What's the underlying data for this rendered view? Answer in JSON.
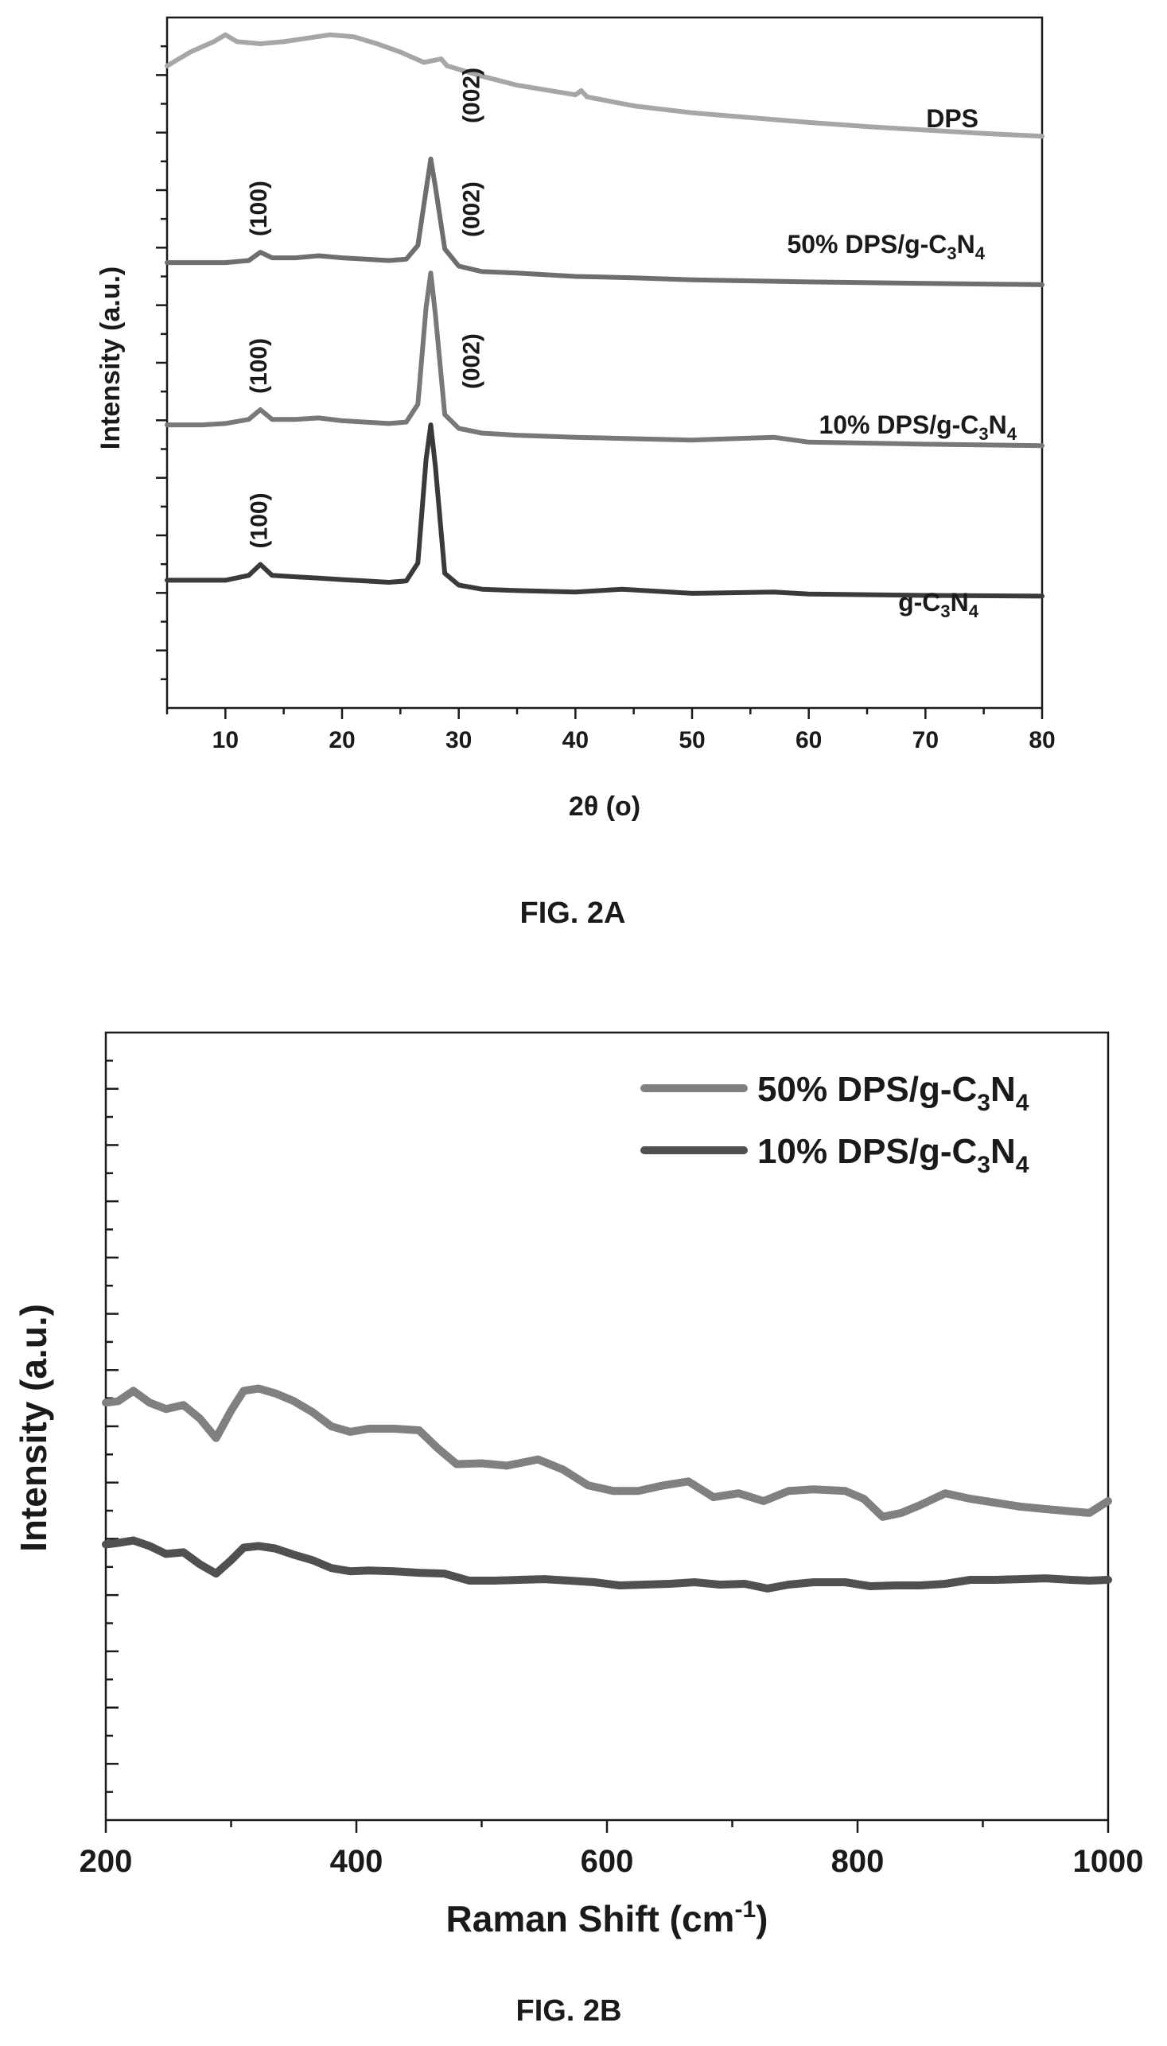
{
  "figures": [
    {
      "caption": "FIG. 2A",
      "chart_data": {
        "type": "line",
        "xlabel": "2θ (o)",
        "ylabel": "Intensity (a.u.)",
        "xlim": [
          5,
          80
        ],
        "x_ticks": [
          10,
          20,
          30,
          40,
          50,
          60,
          70,
          80
        ],
        "y_tick_labels": "none",
        "grid": false,
        "series": [
          {
            "name": "DPS",
            "color": "#a6a6a6",
            "x": [
              5,
              7,
              9,
              10,
              11,
              13,
              15,
              17,
              19,
              21,
              23,
              25,
              27,
              28.5,
              29,
              30,
              32,
              35,
              40,
              40.5,
              41,
              45,
              50,
              55,
              60,
              65,
              70,
              75,
              80
            ],
            "y": [
              0.93,
              0.95,
              0.965,
              0.975,
              0.965,
              0.962,
              0.965,
              0.97,
              0.975,
              0.972,
              0.962,
              0.95,
              0.935,
              0.94,
              0.93,
              0.925,
              0.915,
              0.902,
              0.888,
              0.894,
              0.885,
              0.872,
              0.862,
              0.855,
              0.848,
              0.842,
              0.837,
              0.832,
              0.828
            ]
          },
          {
            "name": "50% DPS/g-C3N4",
            "color": "#6e6e6e",
            "x": [
              5,
              8,
              10,
              12,
              13,
              14,
              16,
              18,
              20,
              22,
              24,
              25.5,
              26.5,
              27.2,
              27.6,
              28.0,
              28.8,
              30,
              32,
              35,
              40,
              45,
              50,
              60,
              70,
              80
            ],
            "y": [
              0.645,
              0.645,
              0.645,
              0.648,
              0.66,
              0.652,
              0.652,
              0.655,
              0.652,
              0.65,
              0.648,
              0.65,
              0.67,
              0.75,
              0.795,
              0.755,
              0.665,
              0.64,
              0.632,
              0.63,
              0.625,
              0.623,
              0.62,
              0.617,
              0.615,
              0.613
            ]
          },
          {
            "name": "10% DPS/g-C3N4",
            "color": "#787878",
            "x": [
              5,
              8,
              10,
              12,
              13,
              14,
              16,
              18,
              20,
              22,
              24,
              25.5,
              26.5,
              27.2,
              27.6,
              28.0,
              28.8,
              30,
              32,
              35,
              40,
              45,
              50,
              57,
              60,
              70,
              80
            ],
            "y": [
              0.41,
              0.41,
              0.412,
              0.418,
              0.432,
              0.418,
              0.418,
              0.42,
              0.416,
              0.414,
              0.412,
              0.414,
              0.44,
              0.58,
              0.63,
              0.57,
              0.425,
              0.405,
              0.398,
              0.395,
              0.392,
              0.39,
              0.388,
              0.392,
              0.385,
              0.382,
              0.38
            ]
          },
          {
            "name": "g-C3N4",
            "color": "#3a3a3a",
            "x": [
              5,
              8,
              10,
              12,
              13,
              14,
              16,
              18,
              20,
              22,
              24,
              25.5,
              26.5,
              27.2,
              27.6,
              28.0,
              28.8,
              30,
              32,
              35,
              40,
              44,
              50,
              57,
              60,
              70,
              80
            ],
            "y": [
              0.185,
              0.185,
              0.185,
              0.192,
              0.208,
              0.192,
              0.19,
              0.188,
              0.186,
              0.184,
              0.182,
              0.184,
              0.21,
              0.36,
              0.41,
              0.35,
              0.195,
              0.178,
              0.172,
              0.17,
              0.168,
              0.172,
              0.166,
              0.168,
              0.165,
              0.163,
              0.162
            ]
          }
        ],
        "annotations": [
          {
            "text": "(100)",
            "x": 13,
            "y": 0.66
          },
          {
            "text": "(002)",
            "x": 28.5,
            "y": 0.795
          },
          {
            "text": "(100)",
            "x": 13,
            "y": 0.432
          },
          {
            "text": "(002)",
            "x": 28.5,
            "y": 0.63
          },
          {
            "text": "(100)",
            "x": 13,
            "y": 0.208
          },
          {
            "text": "(002)",
            "x": 28.5,
            "y": 0.41
          }
        ],
        "series_labels": [
          {
            "base": "DPS",
            "sub1": "",
            "mid": "",
            "sub2": ""
          },
          {
            "base": "50% DPS/g-C",
            "sub1": "3",
            "mid": "N",
            "sub2": "4"
          },
          {
            "base": "10% DPS/g-C",
            "sub1": "3",
            "mid": "N",
            "sub2": "4"
          },
          {
            "base": "g-C",
            "sub1": "3",
            "mid": "N",
            "sub2": "4"
          }
        ]
      }
    },
    {
      "caption": "FIG. 2B",
      "chart_data": {
        "type": "line",
        "xlabel_base": "Raman Shift (cm",
        "xlabel_sup": "-1",
        "xlabel_end": ")",
        "ylabel": "Intensity (a.u.)",
        "xlim": [
          200,
          1000
        ],
        "x_ticks": [
          200,
          400,
          600,
          800,
          1000
        ],
        "y_tick_labels": "none",
        "grid": false,
        "legend_position": "top-right",
        "legend": [
          {
            "base": "50% DPS/g-C",
            "sub1": "3",
            "mid": "N",
            "sub2": "4",
            "color": "#808080"
          },
          {
            "base": "10% DPS/g-C",
            "sub1": "3",
            "mid": "N",
            "sub2": "4",
            "color": "#505050"
          }
        ],
        "series": [
          {
            "name": "50% DPS/g-C3N4",
            "color": "#808080",
            "x": [
              200,
              210,
              222,
              235,
              248,
              262,
              275,
              288,
              300,
              310,
              322,
              335,
              350,
              365,
              380,
              395,
              410,
              430,
              450,
              465,
              480,
              500,
              520,
              545,
              565,
              585,
              605,
              625,
              645,
              665,
              685,
              705,
              725,
              745,
              765,
              790,
              805,
              820,
              835,
              850,
              870,
              890,
              910,
              930,
              950,
              970,
              985,
              1000
            ],
            "y": [
              0.53,
              0.532,
              0.545,
              0.53,
              0.522,
              0.527,
              0.51,
              0.485,
              0.52,
              0.545,
              0.548,
              0.542,
              0.532,
              0.518,
              0.5,
              0.493,
              0.497,
              0.497,
              0.495,
              0.472,
              0.452,
              0.453,
              0.45,
              0.458,
              0.445,
              0.425,
              0.418,
              0.418,
              0.425,
              0.43,
              0.41,
              0.415,
              0.405,
              0.418,
              0.42,
              0.418,
              0.408,
              0.385,
              0.39,
              0.4,
              0.415,
              0.408,
              0.403,
              0.398,
              0.395,
              0.392,
              0.39,
              0.405
            ]
          },
          {
            "name": "10% DPS/g-C3N4",
            "color": "#505050",
            "x": [
              200,
              210,
              222,
              235,
              248,
              262,
              275,
              288,
              300,
              310,
              322,
              335,
              350,
              365,
              380,
              395,
              410,
              430,
              450,
              470,
              490,
              510,
              530,
              550,
              570,
              590,
              610,
              630,
              650,
              670,
              690,
              710,
              728,
              745,
              765,
              790,
              810,
              830,
              850,
              870,
              890,
              910,
              930,
              950,
              970,
              985,
              1000
            ],
            "y": [
              0.35,
              0.352,
              0.355,
              0.348,
              0.338,
              0.34,
              0.325,
              0.313,
              0.33,
              0.346,
              0.348,
              0.345,
              0.337,
              0.33,
              0.32,
              0.316,
              0.317,
              0.316,
              0.314,
              0.313,
              0.304,
              0.304,
              0.305,
              0.306,
              0.304,
              0.302,
              0.298,
              0.299,
              0.3,
              0.302,
              0.299,
              0.3,
              0.294,
              0.299,
              0.302,
              0.302,
              0.297,
              0.298,
              0.298,
              0.3,
              0.305,
              0.305,
              0.306,
              0.307,
              0.305,
              0.304,
              0.305
            ]
          }
        ]
      }
    }
  ]
}
